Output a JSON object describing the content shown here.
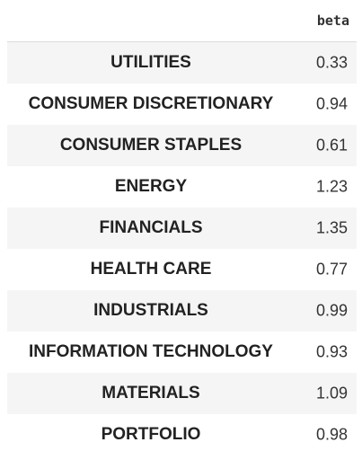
{
  "table": {
    "column_header": "beta",
    "rows": [
      {
        "label": "UTILITIES",
        "value": "0.33"
      },
      {
        "label": "CONSUMER DISCRETIONARY",
        "value": "0.94"
      },
      {
        "label": "CONSUMER STAPLES",
        "value": "0.61"
      },
      {
        "label": "ENERGY",
        "value": "1.23"
      },
      {
        "label": "FINANCIALS",
        "value": "1.35"
      },
      {
        "label": "HEALTH CARE",
        "value": "0.77"
      },
      {
        "label": "INDUSTRIALS",
        "value": "0.99"
      },
      {
        "label": "INFORMATION TECHNOLOGY",
        "value": "0.93"
      },
      {
        "label": "MATERIALS",
        "value": "1.09"
      },
      {
        "label": "PORTFOLIO",
        "value": "0.98"
      }
    ]
  }
}
